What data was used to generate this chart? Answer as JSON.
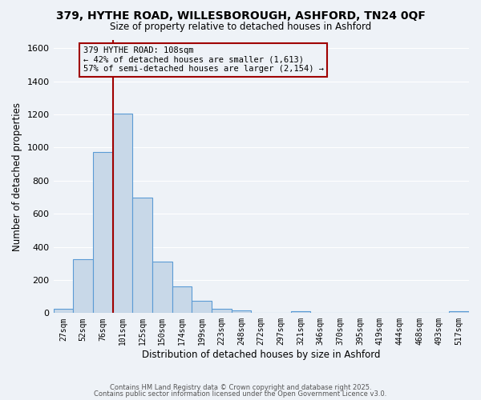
{
  "title1": "379, HYTHE ROAD, WILLESBOROUGH, ASHFORD, TN24 0QF",
  "title2": "Size of property relative to detached houses in Ashford",
  "xlabel": "Distribution of detached houses by size in Ashford",
  "ylabel": "Number of detached properties",
  "bar_labels": [
    "27sqm",
    "52sqm",
    "76sqm",
    "101sqm",
    "125sqm",
    "150sqm",
    "174sqm",
    "199sqm",
    "223sqm",
    "248sqm",
    "272sqm",
    "297sqm",
    "321sqm",
    "346sqm",
    "370sqm",
    "395sqm",
    "419sqm",
    "444sqm",
    "468sqm",
    "493sqm",
    "517sqm"
  ],
  "bar_values": [
    25,
    325,
    975,
    1205,
    700,
    310,
    160,
    75,
    25,
    15,
    0,
    0,
    10,
    0,
    0,
    0,
    0,
    0,
    0,
    0,
    10
  ],
  "bar_color": "#c8d8e8",
  "bar_edge_color": "#5b9bd5",
  "vline_pos": 2.5,
  "vline_color": "#a00000",
  "annotation_line1": "379 HYTHE ROAD: 108sqm",
  "annotation_line2": "← 42% of detached houses are smaller (1,613)",
  "annotation_line3": "57% of semi-detached houses are larger (2,154) →",
  "annotation_box_color": "#a00000",
  "ylim": [
    0,
    1650
  ],
  "yticks": [
    0,
    200,
    400,
    600,
    800,
    1000,
    1200,
    1400,
    1600
  ],
  "bg_color": "#eef2f7",
  "grid_color": "#ffffff",
  "footer1": "Contains HM Land Registry data © Crown copyright and database right 2025.",
  "footer2": "Contains public sector information licensed under the Open Government Licence v3.0."
}
